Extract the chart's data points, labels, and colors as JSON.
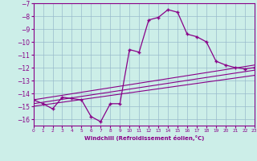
{
  "xlabel": "Windchill (Refroidissement éolien,°C)",
  "bg_color": "#cceee8",
  "line_color": "#880088",
  "grid_color": "#99bbcc",
  "xlim": [
    0,
    23
  ],
  "ylim": [
    -16.5,
    -7.0
  ],
  "xticks": [
    0,
    1,
    2,
    3,
    4,
    5,
    6,
    7,
    8,
    9,
    10,
    11,
    12,
    13,
    14,
    15,
    16,
    17,
    18,
    19,
    20,
    21,
    22,
    23
  ],
  "yticks": [
    -7,
    -8,
    -9,
    -10,
    -11,
    -12,
    -13,
    -14,
    -15,
    -16
  ],
  "main_x": [
    0,
    1,
    2,
    3,
    4,
    5,
    6,
    7,
    8,
    9,
    10,
    11,
    12,
    13,
    14,
    15,
    16,
    17,
    18,
    19,
    20,
    21,
    22,
    23
  ],
  "main_y": [
    -14.5,
    -14.8,
    -15.2,
    -14.3,
    -14.4,
    -14.5,
    -15.8,
    -16.2,
    -14.8,
    -14.8,
    -10.6,
    -10.8,
    -8.3,
    -8.1,
    -7.5,
    -7.7,
    -9.4,
    -9.6,
    -10.0,
    -11.5,
    -11.8,
    -12.0,
    -12.1,
    -12.0
  ],
  "trend1_x": [
    0,
    23
  ],
  "trend1_y": [
    -14.5,
    -11.8
  ],
  "trend2_x": [
    0,
    23
  ],
  "trend2_y": [
    -14.8,
    -12.2
  ],
  "trend3_x": [
    0,
    23
  ],
  "trend3_y": [
    -15.0,
    -12.6
  ]
}
